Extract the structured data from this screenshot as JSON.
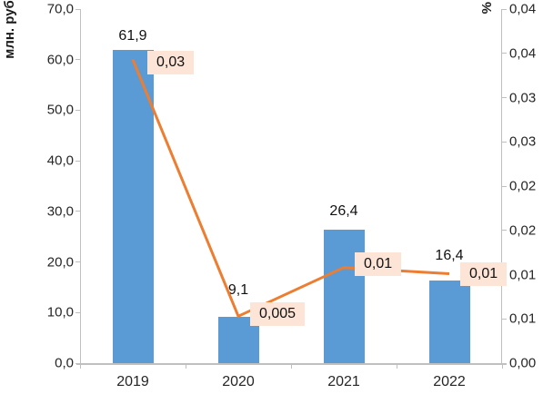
{
  "chart_data": {
    "type": "bar",
    "subtype": "combo-bar-line-dual-axis",
    "title": "",
    "categories": [
      "2019",
      "2020",
      "2021",
      "2022"
    ],
    "series": [
      {
        "type": "bar",
        "axis": "left",
        "values": [
          61.9,
          9.1,
          26.4,
          16.4
        ],
        "labels": [
          "61,9",
          "9,1",
          "26,4",
          "16,4"
        ],
        "color": "#5b9bd5"
      },
      {
        "type": "line",
        "axis": "right",
        "values": [
          0.03,
          0.005,
          0.01,
          0.01
        ],
        "labels": [
          "0,03",
          "0,005",
          "0,01",
          "0,01"
        ],
        "plotted_values": [
          0.0343,
          0.0053,
          0.0108,
          0.0101
        ],
        "color": "#ed7d31",
        "label_fill": "#fce4d6"
      }
    ],
    "left_axis": {
      "title": "млн. руб.",
      "min": 0,
      "max": 70,
      "step": 10,
      "tick_labels": [
        "70,0",
        "60,0",
        "50,0",
        "40,0",
        "30,0",
        "20,0",
        "10,0",
        "0,0"
      ]
    },
    "right_axis": {
      "title": "%",
      "min": 0,
      "max": 0.04,
      "step": 0.005,
      "tick_labels": [
        "0,04",
        "0,04",
        "0,03",
        "0,03",
        "0,02",
        "0,02",
        "0,01",
        "0,01",
        "0,00"
      ]
    },
    "grid": false,
    "legend": "none",
    "background": "#ffffff",
    "axis_color": "#bfbfbf"
  }
}
